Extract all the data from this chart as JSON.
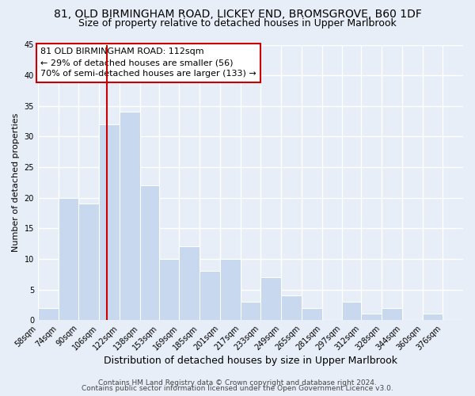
{
  "title1": "81, OLD BIRMINGHAM ROAD, LICKEY END, BROMSGROVE, B60 1DF",
  "title2": "Size of property relative to detached houses in Upper Marlbrook",
  "xlabel": "Distribution of detached houses by size in Upper Marlbrook",
  "ylabel": "Number of detached properties",
  "bin_labels": [
    "58sqm",
    "74sqm",
    "90sqm",
    "106sqm",
    "122sqm",
    "138sqm",
    "153sqm",
    "169sqm",
    "185sqm",
    "201sqm",
    "217sqm",
    "233sqm",
    "249sqm",
    "265sqm",
    "281sqm",
    "297sqm",
    "312sqm",
    "328sqm",
    "344sqm",
    "360sqm",
    "376sqm"
  ],
  "bin_edges": [
    58,
    74,
    90,
    106,
    122,
    138,
    153,
    169,
    185,
    201,
    217,
    233,
    249,
    265,
    281,
    297,
    312,
    328,
    344,
    360,
    376,
    392
  ],
  "counts": [
    2,
    20,
    19,
    32,
    34,
    22,
    10,
    12,
    8,
    10,
    3,
    7,
    4,
    2,
    0,
    3,
    1,
    2,
    0,
    1,
    0
  ],
  "bar_color": "#c8d8ef",
  "bar_edge_color": "#ffffff",
  "property_value": 112,
  "vline_color": "#cc0000",
  "annotation_line1": "81 OLD BIRMINGHAM ROAD: 112sqm",
  "annotation_line2": "← 29% of detached houses are smaller (56)",
  "annotation_line3": "70% of semi-detached houses are larger (133) →",
  "annotation_box_edge_color": "#cc0000",
  "annotation_box_face_color": "#ffffff",
  "ylim": [
    0,
    45
  ],
  "yticks": [
    0,
    5,
    10,
    15,
    20,
    25,
    30,
    35,
    40,
    45
  ],
  "footer1": "Contains HM Land Registry data © Crown copyright and database right 2024.",
  "footer2": "Contains public sector information licensed under the Open Government Licence v3.0.",
  "background_color": "#e8eef8",
  "plot_bg_color": "#e8eef8",
  "grid_color": "#ffffff",
  "title1_fontsize": 10,
  "title2_fontsize": 9,
  "xlabel_fontsize": 9,
  "ylabel_fontsize": 8,
  "tick_fontsize": 7,
  "footer_fontsize": 6.5,
  "annotation_fontsize": 8
}
